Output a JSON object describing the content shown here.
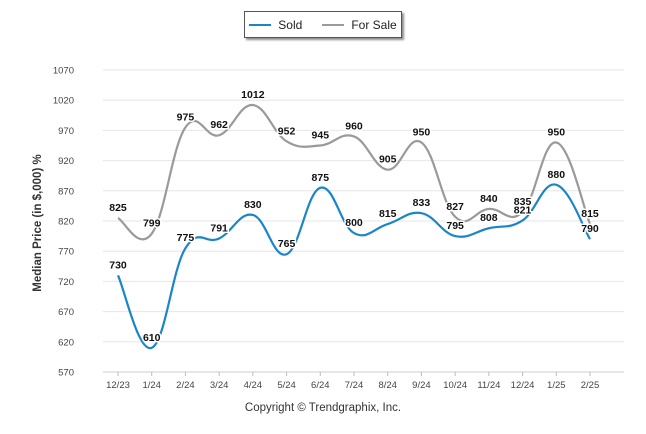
{
  "legend": {
    "sold_label": "Sold",
    "for_sale_label": "For Sale"
  },
  "footer": {
    "copyright": "Copyright © Trendgraphix, Inc."
  },
  "chart_data": {
    "type": "line",
    "title": "",
    "xlabel": "",
    "ylabel": "Median Price (in $,000) %",
    "ylim": [
      570,
      1070
    ],
    "yticks": [
      570,
      620,
      670,
      720,
      770,
      820,
      870,
      920,
      970,
      1020,
      1070
    ],
    "categories": [
      "12/23",
      "1/24",
      "2/24",
      "3/24",
      "4/24",
      "5/24",
      "6/24",
      "7/24",
      "8/24",
      "9/24",
      "10/24",
      "11/24",
      "12/24",
      "1/25",
      "2/25"
    ],
    "grid": true,
    "legend_position": "top-center",
    "series": [
      {
        "name": "Sold",
        "color": "#1a86c8",
        "values": [
          730,
          610,
          775,
          791,
          830,
          765,
          875,
          800,
          815,
          833,
          795,
          808,
          821,
          880,
          790
        ]
      },
      {
        "name": "For Sale",
        "color": "#9a9a9a",
        "values": [
          825,
          799,
          975,
          962,
          1012,
          952,
          945,
          960,
          905,
          950,
          827,
          840,
          835,
          950,
          815
        ]
      }
    ]
  }
}
